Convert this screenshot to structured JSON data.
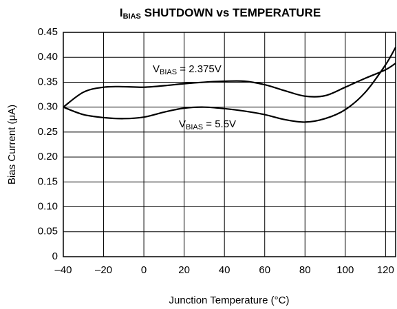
{
  "chart_data": {
    "type": "line",
    "title": [
      "I",
      "BIAS",
      " SHUTDOWN vs TEMPERATURE"
    ],
    "x_label": "Junction Temperature (°C)",
    "y_label": "Bias Current (μA)",
    "x": [
      -40,
      -30,
      -20,
      -10,
      0,
      10,
      20,
      30,
      40,
      50,
      60,
      70,
      80,
      90,
      100,
      110,
      120,
      125
    ],
    "series": [
      {
        "label": [
          "V",
          "BIAS",
          " = 2.375V"
        ],
        "color": "#000000",
        "values": [
          0.3,
          0.33,
          0.34,
          0.341,
          0.34,
          0.343,
          0.347,
          0.35,
          0.352,
          0.352,
          0.345,
          0.333,
          0.322,
          0.323,
          0.34,
          0.358,
          0.375,
          0.388
        ]
      },
      {
        "label": [
          "V",
          "BIAS",
          " = 5.5V"
        ],
        "color": "#000000",
        "values": [
          0.3,
          0.285,
          0.279,
          0.277,
          0.28,
          0.29,
          0.298,
          0.3,
          0.297,
          0.292,
          0.285,
          0.275,
          0.27,
          0.277,
          0.295,
          0.33,
          0.385,
          0.42
        ]
      }
    ],
    "xlim": [
      -40,
      125
    ],
    "xticks": [
      {
        "value": -40,
        "label": "–40"
      },
      {
        "value": -20,
        "label": "–20"
      },
      0,
      20,
      40,
      60,
      80,
      100,
      120
    ],
    "ylim": [
      0,
      0.45
    ],
    "yticks": [
      0,
      0.05,
      {
        "value": 0.1,
        "label": "0.10"
      },
      0.15,
      {
        "value": 0.2,
        "label": "0.20"
      },
      0.25,
      {
        "value": 0.3,
        "label": "0.30"
      },
      0.35,
      {
        "value": 0.4,
        "label": "0.40"
      },
      0.45
    ],
    "grid": true
  }
}
